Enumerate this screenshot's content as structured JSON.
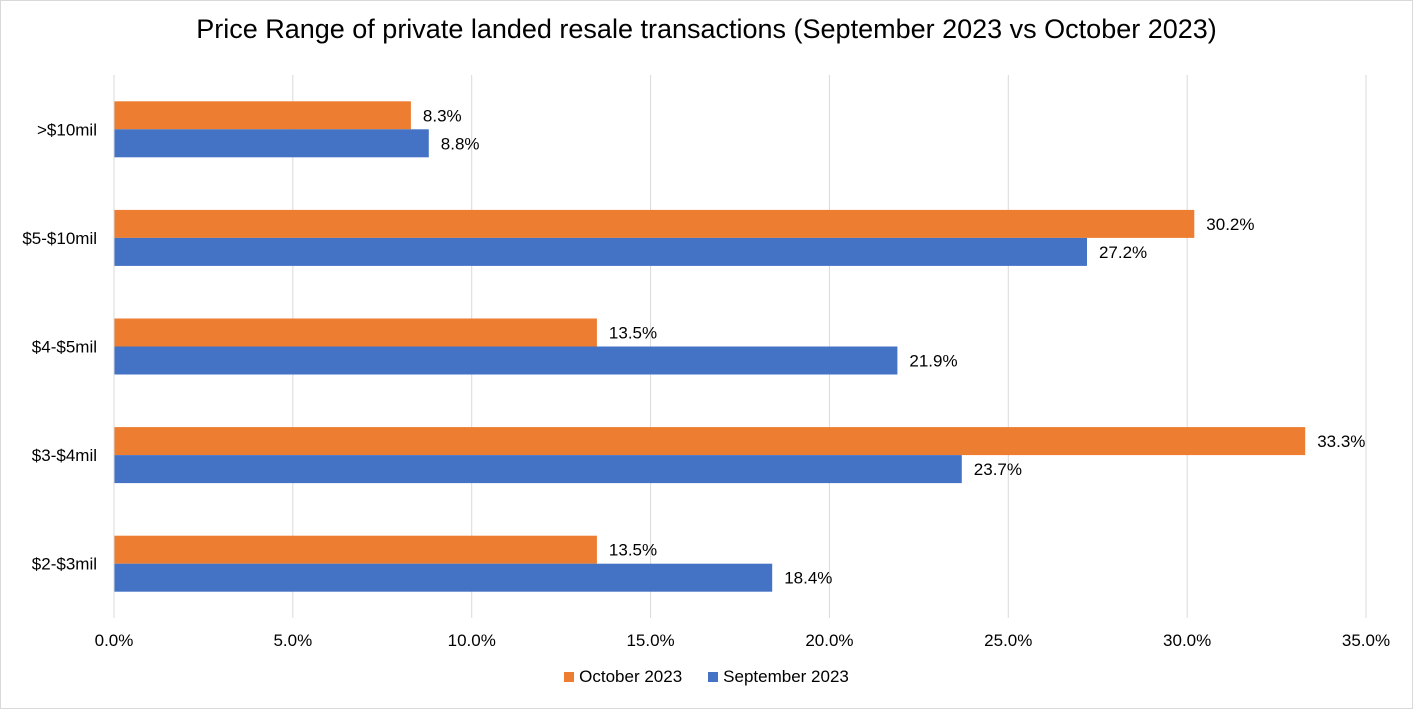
{
  "chart_data": {
    "type": "bar",
    "orientation": "horizontal",
    "title": "Price Range of private landed resale transactions (September 2023 vs October 2023)",
    "xlabel": "",
    "ylabel": "",
    "categories": [
      "$2-$3mil",
      "$3-$4mil",
      "$4-$5mil",
      "$5-$10mil",
      ">$10mil"
    ],
    "series": [
      {
        "name": "September 2023",
        "color": "#4472c4",
        "values": [
          18.4,
          23.7,
          21.9,
          27.2,
          8.8
        ],
        "labels": [
          "18.4%",
          "23.7%",
          "21.9%",
          "27.2%",
          "8.8%"
        ]
      },
      {
        "name": "October 2023",
        "color": "#ed7d31",
        "values": [
          13.5,
          33.3,
          13.5,
          30.2,
          8.3
        ],
        "labels": [
          "13.5%",
          "33.3%",
          "13.5%",
          "30.2%",
          "8.3%"
        ]
      }
    ],
    "xlim": [
      0,
      35
    ],
    "xticks": [
      0,
      5,
      10,
      15,
      20,
      25,
      30,
      35
    ],
    "xtick_labels": [
      "0.0%",
      "5.0%",
      "10.0%",
      "15.0%",
      "20.0%",
      "25.0%",
      "30.0%",
      "35.0%"
    ],
    "grid": true,
    "legend_placement": "bottom",
    "legend_order": [
      "October 2023",
      "September 2023"
    ]
  }
}
